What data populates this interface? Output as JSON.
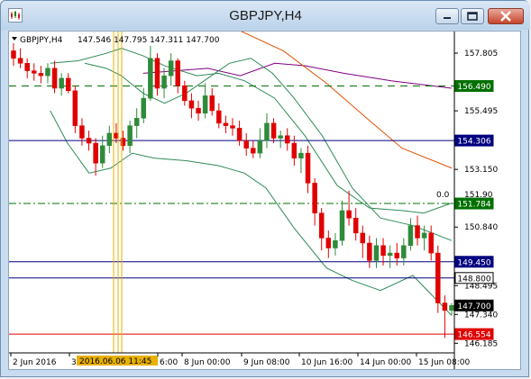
{
  "window": {
    "title": "GBPJPY,H4",
    "icon": "chart-window-icon"
  },
  "chart_header": {
    "symbol_label": "GBPJPY,H4",
    "ohlc_text": "147.546 147.795 147.311 147.700"
  },
  "chart_data": {
    "type": "candlestick",
    "symbol": "GBPJPY",
    "timeframe": "H4",
    "bull_color": "#2f8a3a",
    "bear_color": "#e00000",
    "ylim": [
      145.8,
      158.6
    ],
    "price_ticks": [
      "157.805",
      "155.495",
      "153.150",
      "150.840",
      "148.495",
      "147.340",
      "146.185"
    ],
    "time_ticks": [
      "2 Jun 2016",
      "3",
      "6:00",
      "8 Jun 00:00",
      "9 Jun 08:00",
      "10 Jun 16:00",
      "14 Jun 00:00",
      "15 Jun 08:00"
    ],
    "crosshair_time_label": "2016.06.06 11:45",
    "candles": [
      [
        157.9,
        158.2,
        157.3,
        157.6
      ],
      [
        157.6,
        158.0,
        157.2,
        157.4
      ],
      [
        157.4,
        157.6,
        156.8,
        157.1
      ],
      [
        157.1,
        157.4,
        156.7,
        157.0
      ],
      [
        157.0,
        157.3,
        156.6,
        156.9
      ],
      [
        156.9,
        157.4,
        156.6,
        157.2
      ],
      [
        157.2,
        157.5,
        156.2,
        156.4
      ],
      [
        156.4,
        157.0,
        156.1,
        156.8
      ],
      [
        156.8,
        157.0,
        156.2,
        156.3
      ],
      [
        156.3,
        156.5,
        154.6,
        154.9
      ],
      [
        154.9,
        155.2,
        154.1,
        154.4
      ],
      [
        154.4,
        154.7,
        153.9,
        154.2
      ],
      [
        154.2,
        154.4,
        152.9,
        153.4
      ],
      [
        153.4,
        154.5,
        153.2,
        154.1
      ],
      [
        154.1,
        154.9,
        153.8,
        154.6
      ],
      [
        154.6,
        155.0,
        154.2,
        154.4
      ],
      [
        154.4,
        154.7,
        153.9,
        154.1
      ],
      [
        154.1,
        155.1,
        153.8,
        154.9
      ],
      [
        154.9,
        155.6,
        154.4,
        155.2
      ],
      [
        155.2,
        156.4,
        155.0,
        156.0
      ],
      [
        156.0,
        158.1,
        155.9,
        157.6
      ],
      [
        157.6,
        157.8,
        156.1,
        156.4
      ],
      [
        156.4,
        157.2,
        156.0,
        156.9
      ],
      [
        156.9,
        157.8,
        156.5,
        157.5
      ],
      [
        157.5,
        157.6,
        156.2,
        156.5
      ],
      [
        156.5,
        156.7,
        155.7,
        155.9
      ],
      [
        155.9,
        156.2,
        155.2,
        155.6
      ],
      [
        155.6,
        155.9,
        155.1,
        155.4
      ],
      [
        155.4,
        156.6,
        155.2,
        156.1
      ],
      [
        156.1,
        156.4,
        155.3,
        155.5
      ],
      [
        155.5,
        155.8,
        154.8,
        155.0
      ],
      [
        155.0,
        155.3,
        154.6,
        154.9
      ],
      [
        154.9,
        155.2,
        154.5,
        154.8
      ],
      [
        154.8,
        155.1,
        154.1,
        154.3
      ],
      [
        154.3,
        154.6,
        153.7,
        154.0
      ],
      [
        154.0,
        154.3,
        153.6,
        153.8
      ],
      [
        153.8,
        154.8,
        153.6,
        154.3
      ],
      [
        154.3,
        155.4,
        154.0,
        155.0
      ],
      [
        155.0,
        155.2,
        154.2,
        154.4
      ],
      [
        154.4,
        154.7,
        154.0,
        154.5
      ],
      [
        154.5,
        154.8,
        153.9,
        154.2
      ],
      [
        154.2,
        154.5,
        153.3,
        153.6
      ],
      [
        153.6,
        154.0,
        153.0,
        153.8
      ],
      [
        153.8,
        154.1,
        152.2,
        152.6
      ],
      [
        152.6,
        152.8,
        150.9,
        151.4
      ],
      [
        151.4,
        151.6,
        149.9,
        150.4
      ],
      [
        150.4,
        150.7,
        149.6,
        150.0
      ],
      [
        150.0,
        150.6,
        149.7,
        150.3
      ],
      [
        150.3,
        151.9,
        150.1,
        151.5
      ],
      [
        151.5,
        152.3,
        150.9,
        151.2
      ],
      [
        151.2,
        151.6,
        150.3,
        150.6
      ],
      [
        150.6,
        150.9,
        149.6,
        150.2
      ],
      [
        150.2,
        150.5,
        149.2,
        149.5
      ],
      [
        149.5,
        150.4,
        149.2,
        150.1
      ],
      [
        150.1,
        150.4,
        149.3,
        149.7
      ],
      [
        149.7,
        150.1,
        149.2,
        149.8
      ],
      [
        149.8,
        150.2,
        149.3,
        149.6
      ],
      [
        149.6,
        150.4,
        149.3,
        150.1
      ],
      [
        150.1,
        151.2,
        149.9,
        150.9
      ],
      [
        150.9,
        151.3,
        150.1,
        150.4
      ],
      [
        150.4,
        150.9,
        149.9,
        150.6
      ],
      [
        150.6,
        150.9,
        149.5,
        149.8
      ],
      [
        149.8,
        150.1,
        147.4,
        147.8
      ],
      [
        147.8,
        148.1,
        146.4,
        147.5
      ],
      [
        147.5,
        147.8,
        147.3,
        147.7
      ]
    ],
    "levels": [
      {
        "label": "156.490",
        "value": 156.49,
        "line_color": "#007000",
        "dash": "8,6",
        "tag_bg": "#007000",
        "tag_fg": "#ffffff"
      },
      {
        "label": "154.306",
        "value": 154.306,
        "line_color": "#000080",
        "dash": "",
        "tag_bg": "#000080",
        "tag_fg": "#ffffff"
      },
      {
        "label": "151.784",
        "value": 151.784,
        "line_color": "#007000",
        "dash": "8,3,2,3",
        "tag_bg": "#007000",
        "tag_fg": "#ffffff"
      },
      {
        "label": "149.450",
        "value": 149.45,
        "line_color": "#000080",
        "dash": "",
        "tag_bg": "#000080",
        "tag_fg": "#ffffff"
      },
      {
        "label": "148.800",
        "value": 148.8,
        "line_color": "#000080",
        "dash": "",
        "tag_bg": "#ffffff",
        "tag_fg": "#000000"
      },
      {
        "label": "147.700",
        "value": 147.7,
        "line_color": "",
        "dash": "",
        "tag_bg": "#000000",
        "tag_fg": "#ffffff"
      },
      {
        "label": "146.554",
        "value": 146.554,
        "line_color": "#e00000",
        "dash": "",
        "tag_bg": "#e00000",
        "tag_fg": "#ffffff"
      }
    ],
    "fib_label": "0.0",
    "fib_partial_label": "151.90",
    "ma_slow": [
      [
        157.0,
        65
      ],
      [
        157.2,
        95
      ],
      [
        156.9,
        110
      ],
      [
        157.4,
        126
      ],
      [
        157.3,
        140
      ],
      [
        157.0,
        158
      ],
      [
        156.7,
        180
      ],
      [
        156.4,
        208
      ]
    ],
    "ma_mid": [
      [
        158.7,
        110
      ],
      [
        157.9,
        130
      ],
      [
        156.6,
        150
      ],
      [
        155.1,
        170
      ],
      [
        154.0,
        185
      ],
      [
        153.2,
        208
      ]
    ],
    "bb_mid": [
      [
        157.4,
        38
      ],
      [
        157.2,
        48
      ],
      [
        156.9,
        55
      ],
      [
        156.2,
        65
      ],
      [
        155.8,
        75
      ],
      [
        156.2,
        85
      ],
      [
        156.8,
        95
      ],
      [
        157.4,
        105
      ],
      [
        157.6,
        115
      ],
      [
        157.0,
        125
      ],
      [
        156.0,
        135
      ],
      [
        154.5,
        148
      ],
      [
        152.4,
        162
      ],
      [
        151.2,
        175
      ],
      [
        150.9,
        190
      ],
      [
        150.3,
        208
      ]
    ],
    "bb_upper": [
      [
        157.4,
        22
      ],
      [
        157.5,
        35
      ],
      [
        157.8,
        48
      ],
      [
        158.0,
        55
      ],
      [
        157.7,
        65
      ],
      [
        157.3,
        75
      ],
      [
        156.9,
        90
      ],
      [
        157.0,
        100
      ],
      [
        156.7,
        112
      ],
      [
        156.0,
        126
      ],
      [
        154.5,
        140
      ],
      [
        152.5,
        155
      ],
      [
        151.6,
        170
      ],
      [
        151.5,
        185
      ],
      [
        151.4,
        195
      ],
      [
        151.8,
        208
      ]
    ],
    "bb_lower": [
      [
        155.5,
        22
      ],
      [
        154.2,
        30
      ],
      [
        153.0,
        40
      ],
      [
        153.2,
        50
      ],
      [
        153.8,
        60
      ],
      [
        153.6,
        70
      ],
      [
        153.5,
        85
      ],
      [
        153.3,
        100
      ],
      [
        153.0,
        112
      ],
      [
        152.4,
        122
      ],
      [
        150.8,
        135
      ],
      [
        149.2,
        150
      ],
      [
        148.7,
        162
      ],
      [
        148.3,
        175
      ],
      [
        148.9,
        190
      ],
      [
        147.3,
        208
      ]
    ]
  }
}
